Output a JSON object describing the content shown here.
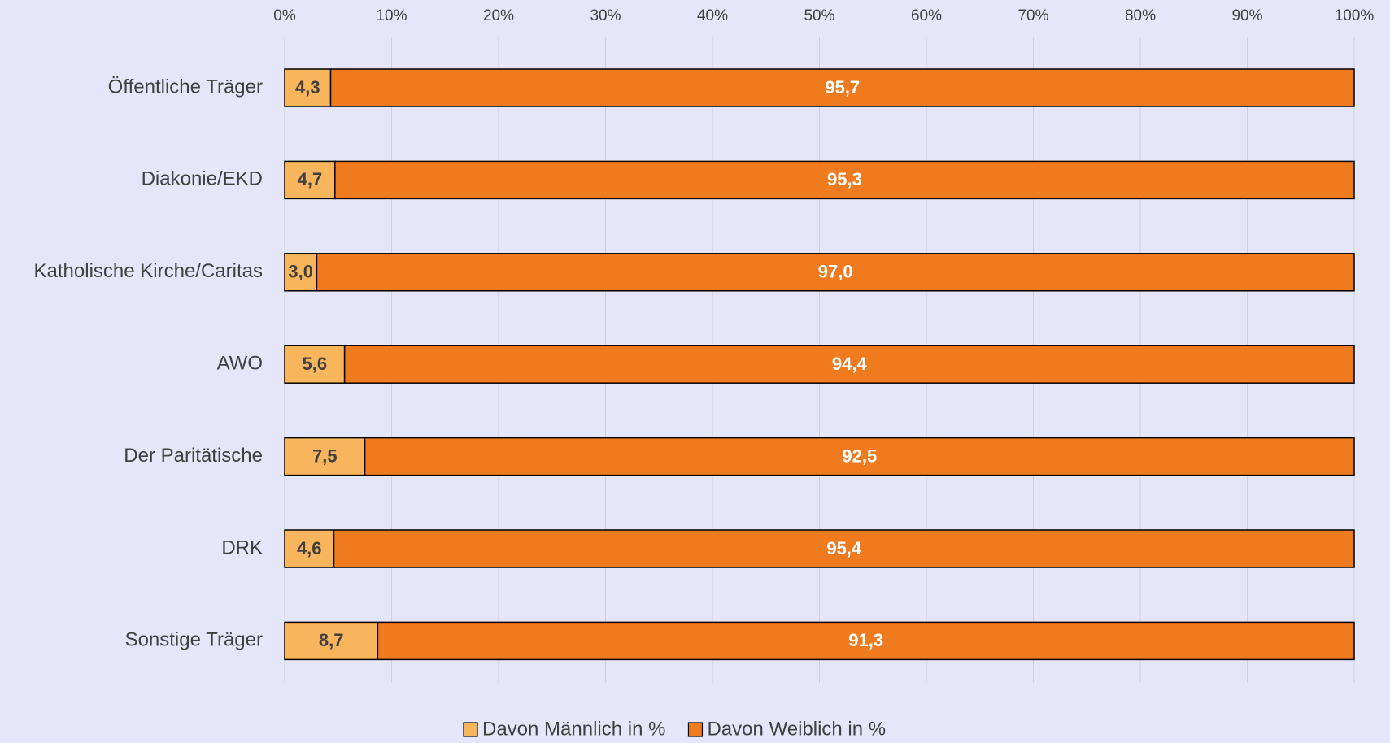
{
  "chart_data": {
    "type": "stacked-bar-horizontal",
    "categories": [
      "Öffentliche Träger",
      "Diakonie/EKD",
      "Katholische Kirche/Caritas",
      "AWO",
      "Der Paritätische",
      "DRK",
      "Sonstige Träger"
    ],
    "series": [
      {
        "name": "Davon Männlich in %",
        "color": "#f9b55c",
        "values": [
          4.3,
          4.7,
          3.0,
          5.6,
          7.5,
          4.6,
          8.7
        ],
        "value_labels": [
          "4,3",
          "4,7",
          "3,0",
          "5,6",
          "7,5",
          "4,6",
          "8,7"
        ]
      },
      {
        "name": "Davon Weiblich in %",
        "color": "#f07b1f",
        "values": [
          95.7,
          95.3,
          97.0,
          94.4,
          92.5,
          95.4,
          91.3
        ],
        "value_labels": [
          "95,7",
          "95,3",
          "97,0",
          "94,4",
          "92,5",
          "95,4",
          "91,3"
        ]
      }
    ],
    "xlim": [
      0,
      100
    ],
    "xticks": [
      {
        "value": 0,
        "label": "0%"
      },
      {
        "value": 10,
        "label": "10%"
      },
      {
        "value": 20,
        "label": "20%"
      },
      {
        "value": 30,
        "label": "30%"
      },
      {
        "value": 40,
        "label": "40%"
      },
      {
        "value": 50,
        "label": "50%"
      },
      {
        "value": 60,
        "label": "60%"
      },
      {
        "value": 70,
        "label": "70%"
      },
      {
        "value": 80,
        "label": "80%"
      },
      {
        "value": 90,
        "label": "90%"
      },
      {
        "value": 100,
        "label": "100%"
      }
    ],
    "grid": true,
    "legend": "bottom"
  }
}
